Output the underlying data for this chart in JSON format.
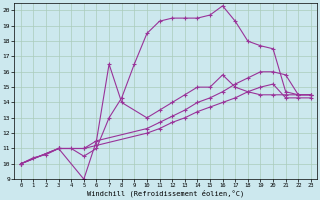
{
  "xlabel": "Windchill (Refroidissement éolien,°C)",
  "bg_color": "#cce8ee",
  "line_color": "#993399",
  "grid_color": "#aaccbb",
  "xlim": [
    -0.5,
    23.5
  ],
  "ylim": [
    9,
    20.5
  ],
  "xticks": [
    0,
    1,
    2,
    3,
    4,
    5,
    6,
    7,
    8,
    9,
    10,
    11,
    12,
    13,
    14,
    15,
    16,
    17,
    18,
    19,
    20,
    21,
    22,
    23
  ],
  "yticks": [
    9,
    10,
    11,
    12,
    13,
    14,
    15,
    16,
    17,
    18,
    19,
    20
  ],
  "line1_x": [
    0,
    1,
    2,
    3,
    4,
    5,
    6,
    7,
    8,
    9,
    10,
    11,
    12,
    13,
    14,
    15,
    16,
    17,
    18,
    19,
    20,
    21,
    22,
    23
  ],
  "line1_y": [
    10.0,
    10.4,
    10.6,
    11.0,
    11.0,
    10.5,
    11.0,
    13.0,
    14.3,
    16.5,
    18.5,
    19.3,
    19.5,
    19.5,
    19.5,
    19.7,
    20.3,
    19.3,
    18.0,
    17.7,
    17.5,
    14.7,
    14.5,
    14.5
  ],
  "line2_x": [
    0,
    3,
    5,
    6,
    7,
    8,
    10,
    11,
    12,
    13,
    14,
    15,
    16,
    17,
    18,
    19,
    20,
    21,
    22,
    23
  ],
  "line2_y": [
    10.0,
    11.0,
    9.0,
    11.5,
    16.5,
    14.0,
    13.0,
    13.5,
    14.0,
    14.5,
    15.0,
    15.0,
    15.8,
    15.0,
    14.7,
    14.5,
    14.5,
    14.5,
    14.5,
    14.5
  ],
  "line3_x": [
    0,
    3,
    5,
    6,
    10,
    11,
    12,
    13,
    14,
    15,
    16,
    17,
    18,
    19,
    20,
    21,
    22,
    23
  ],
  "line3_y": [
    10.0,
    11.0,
    11.0,
    11.5,
    12.3,
    12.7,
    13.1,
    13.5,
    14.0,
    14.3,
    14.7,
    15.2,
    15.6,
    16.0,
    16.0,
    15.8,
    14.5,
    14.5
  ],
  "line4_x": [
    0,
    3,
    5,
    6,
    10,
    11,
    12,
    13,
    14,
    15,
    16,
    17,
    18,
    19,
    20,
    21,
    22,
    23
  ],
  "line4_y": [
    10.0,
    11.0,
    11.0,
    11.2,
    12.0,
    12.3,
    12.7,
    13.0,
    13.4,
    13.7,
    14.0,
    14.3,
    14.7,
    15.0,
    15.2,
    14.3,
    14.3,
    14.3
  ]
}
